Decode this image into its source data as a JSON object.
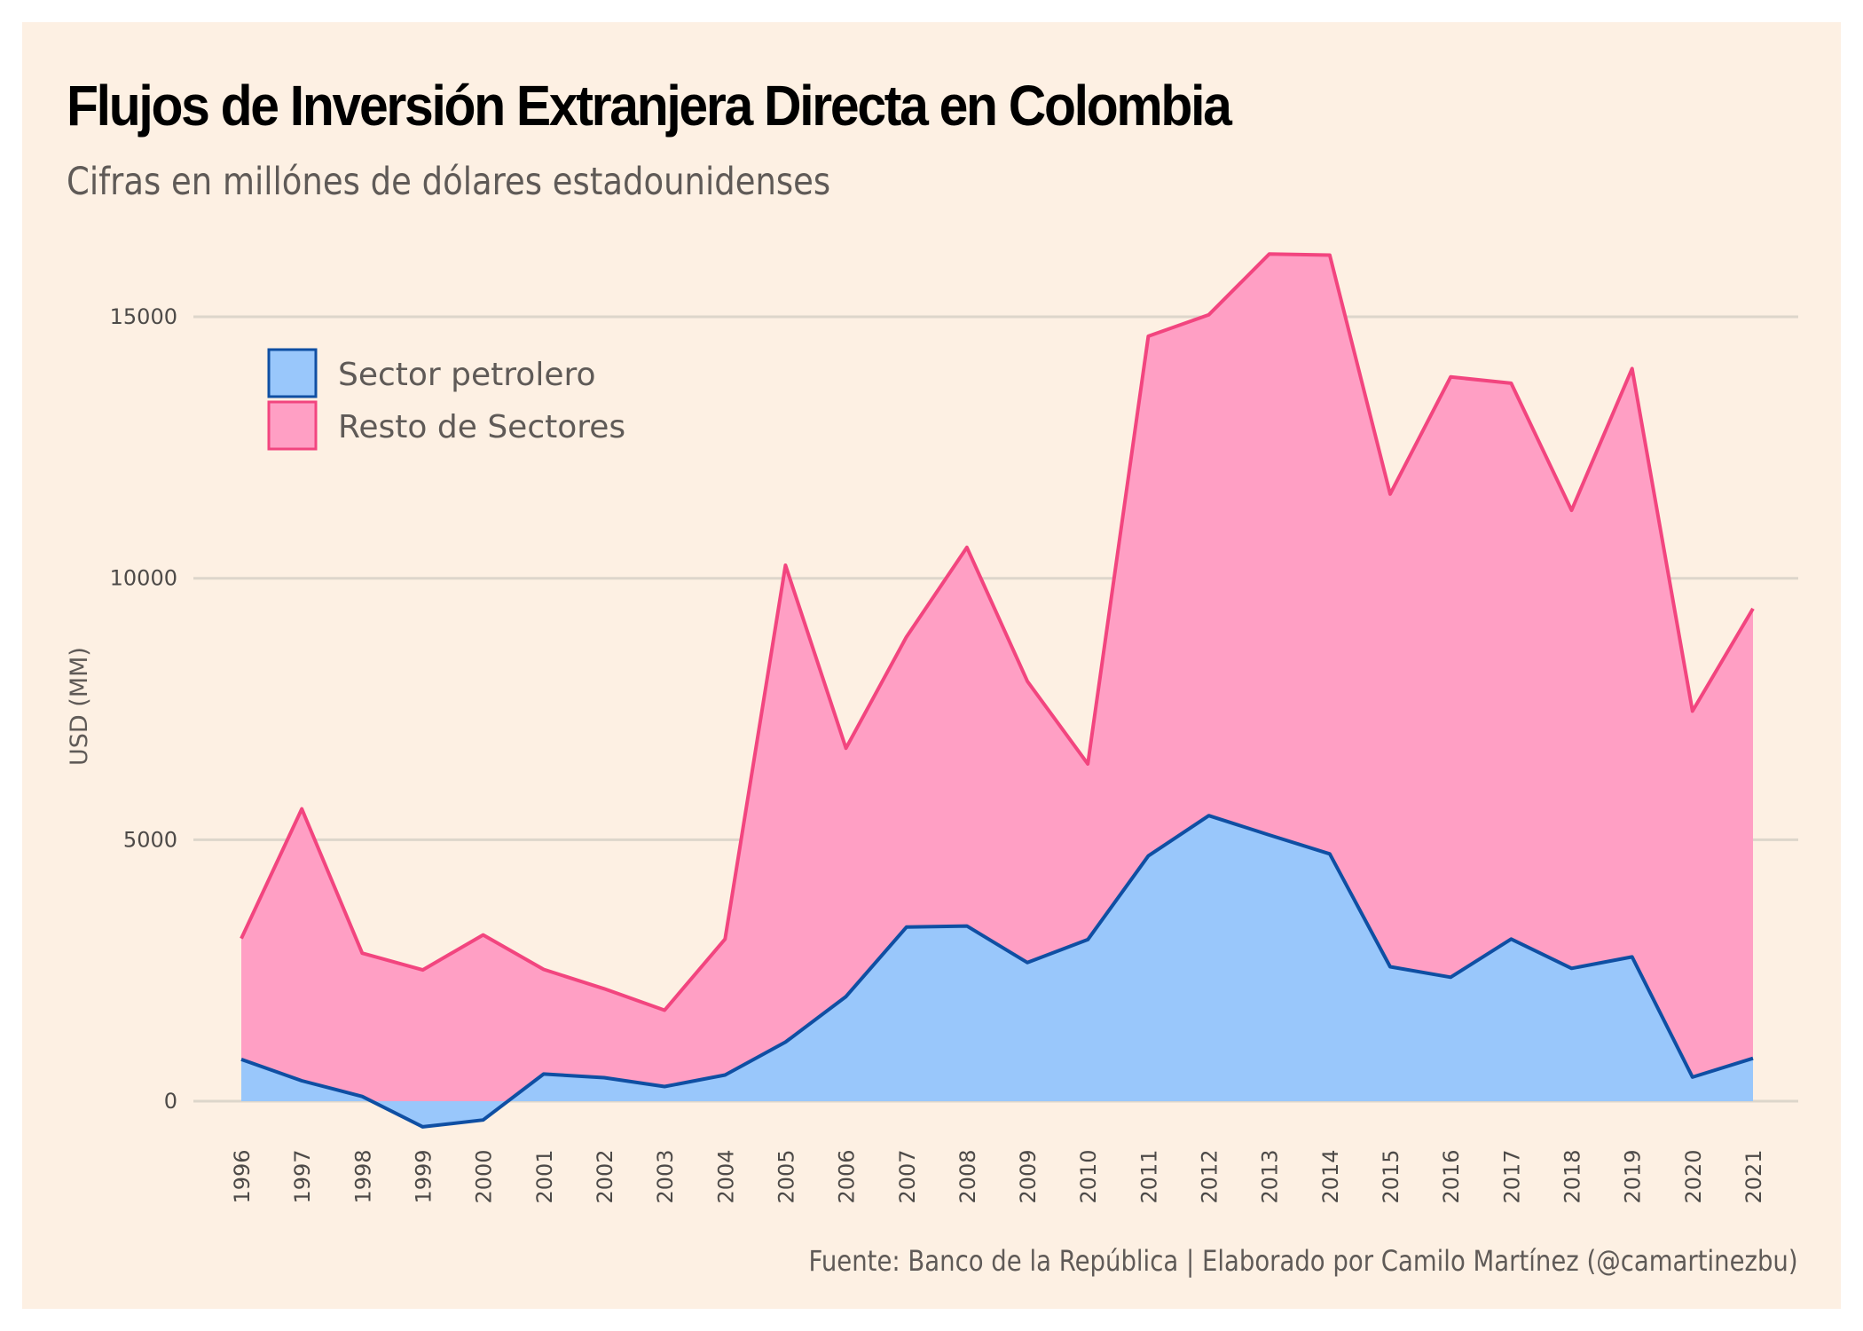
{
  "header": {
    "title": "Flujos de Inversión Extranjera Directa en Colombia",
    "subtitle": "Cifras en millónes de dólares estadounidenses"
  },
  "footer": {
    "caption": "Fuente: Banco de la República | Elaborado por Camilo Martínez (@camartinezbu)"
  },
  "colors": {
    "background": "#fdf0e3",
    "gridline": "#ddd6cb",
    "petrolero_fill": "#99c7fb",
    "petrolero_line": "#0f4fa3",
    "resto_fill": "#ff9fc4",
    "resto_line": "#f2457f"
  },
  "chart_data": {
    "type": "area",
    "stacked": true,
    "title": "Flujos de Inversión Extranjera Directa en Colombia",
    "subtitle": "Cifras en millónes de dólares estadounidenses",
    "xlabel": "",
    "ylabel": "USD (MM)",
    "x": [
      1996,
      1997,
      1998,
      1999,
      2000,
      2001,
      2002,
      2003,
      2004,
      2005,
      2006,
      2007,
      2008,
      2009,
      2010,
      2011,
      2012,
      2013,
      2014,
      2015,
      2016,
      2017,
      2018,
      2019,
      2020,
      2021
    ],
    "x_tick_labels": [
      "1996",
      "1997",
      "1998",
      "1999",
      "2000",
      "2001",
      "2002",
      "2003",
      "2004",
      "2005",
      "2006",
      "2007",
      "2008",
      "2009",
      "2010",
      "2011",
      "2012",
      "2013",
      "2014",
      "2015",
      "2016",
      "2017",
      "2018",
      "2019",
      "2020",
      "2021"
    ],
    "y_ticks": [
      0,
      5000,
      10000,
      15000
    ],
    "y_tick_labels": [
      "0",
      "5000",
      "10000",
      "15000"
    ],
    "ylim": [
      -1000,
      16400
    ],
    "grid": "horizontal",
    "legend_position": "top-left",
    "series": [
      {
        "name": "Sector petrolero",
        "values": [
          800,
          390,
          90,
          -490,
          -360,
          520,
          450,
          280,
          500,
          1130,
          2000,
          3330,
          3350,
          2650,
          3090,
          4690,
          5460,
          5090,
          4730,
          2570,
          2370,
          3100,
          2540,
          2760,
          460,
          820
        ]
      },
      {
        "name": "Resto de Sectores",
        "values": [
          2310,
          5200,
          2740,
          2510,
          3180,
          2000,
          1700,
          1460,
          2600,
          9120,
          4750,
          5550,
          7240,
          5380,
          3360,
          9940,
          9580,
          11110,
          11450,
          9040,
          11480,
          10630,
          8760,
          11250,
          7000,
          8600
        ]
      }
    ]
  }
}
